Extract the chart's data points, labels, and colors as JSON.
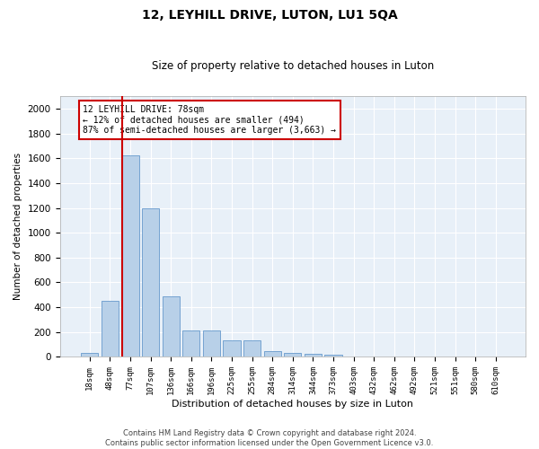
{
  "title": "12, LEYHILL DRIVE, LUTON, LU1 5QA",
  "subtitle": "Size of property relative to detached houses in Luton",
  "xlabel": "Distribution of detached houses by size in Luton",
  "ylabel": "Number of detached properties",
  "bar_labels": [
    "18sqm",
    "48sqm",
    "77sqm",
    "107sqm",
    "136sqm",
    "166sqm",
    "196sqm",
    "225sqm",
    "255sqm",
    "284sqm",
    "314sqm",
    "344sqm",
    "373sqm",
    "403sqm",
    "432sqm",
    "462sqm",
    "492sqm",
    "521sqm",
    "551sqm",
    "580sqm",
    "610sqm"
  ],
  "bar_values": [
    35,
    455,
    1620,
    1195,
    490,
    210,
    210,
    130,
    130,
    45,
    32,
    22,
    17,
    0,
    0,
    0,
    0,
    0,
    0,
    0,
    0
  ],
  "bar_color": "#b8d0e8",
  "bar_edgecolor": "#6699cc",
  "bg_color": "#e8f0f8",
  "grid_color": "#ffffff",
  "property_line_color": "#cc0000",
  "annotation_title": "12 LEYHILL DRIVE: 78sqm",
  "annotation_line1": "← 12% of detached houses are smaller (494)",
  "annotation_line2": "87% of semi-detached houses are larger (3,663) →",
  "annotation_box_edgecolor": "#cc0000",
  "ylim": [
    0,
    2100
  ],
  "yticks": [
    0,
    200,
    400,
    600,
    800,
    1000,
    1200,
    1400,
    1600,
    1800,
    2000
  ],
  "footer_line1": "Contains HM Land Registry data © Crown copyright and database right 2024.",
  "footer_line2": "Contains public sector information licensed under the Open Government Licence v3.0."
}
